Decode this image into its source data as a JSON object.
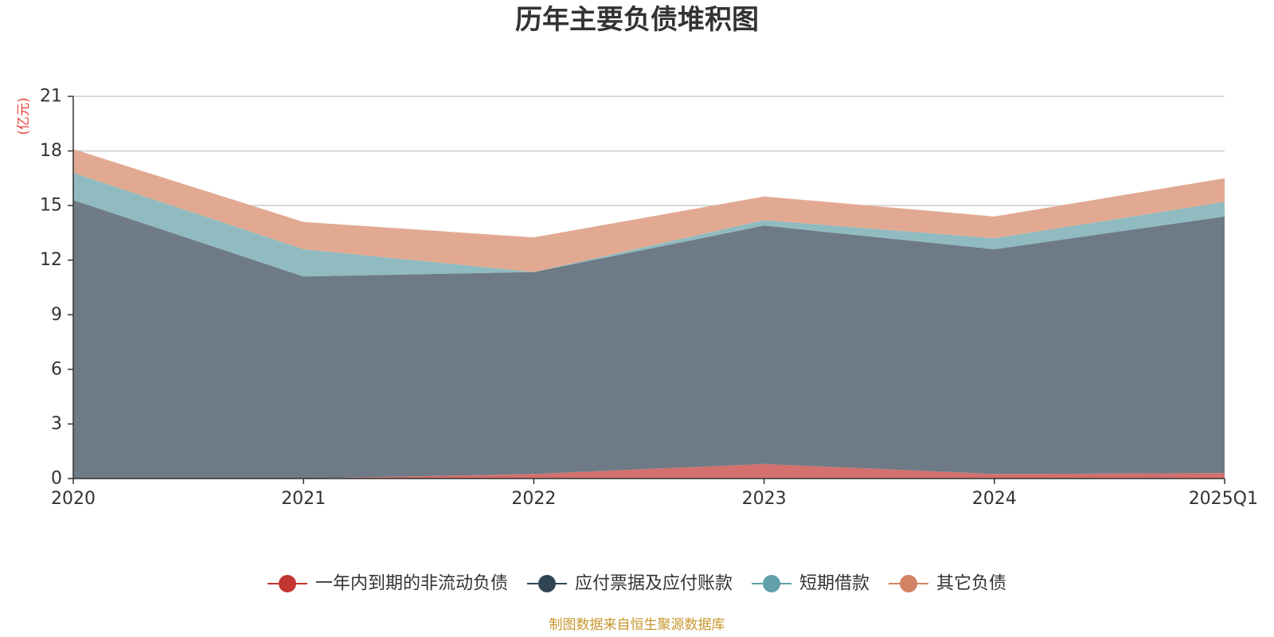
{
  "chart_data": {
    "type": "area",
    "stacked": true,
    "title": "历年主要负债堆积图",
    "unit_label": "(亿元)",
    "categories": [
      "2020",
      "2021",
      "2022",
      "2023",
      "2024",
      "2025Q1"
    ],
    "ylim": [
      0,
      21
    ],
    "yticks": [
      0,
      3,
      6,
      9,
      12,
      15,
      18,
      21
    ],
    "grid": true,
    "legend_position": "bottom-center",
    "series": [
      {
        "name": "一年内到期的非流动负债",
        "values": [
          0.0,
          0.0,
          0.25,
          0.8,
          0.25,
          0.3
        ],
        "line_color": "#c23531",
        "fill_color": "#d4706d"
      },
      {
        "name": "应付票据及应付账款",
        "values": [
          15.3,
          11.1,
          11.1,
          13.1,
          12.35,
          14.1
        ],
        "line_color": "#2f4554",
        "fill_color": "#6e7b86"
      },
      {
        "name": "短期借款",
        "values": [
          1.5,
          1.5,
          0.0,
          0.3,
          0.6,
          0.8
        ],
        "line_color": "#61a0a8",
        "fill_color": "#90bbc0"
      },
      {
        "name": "其它负债",
        "values": [
          1.3,
          1.5,
          1.9,
          1.3,
          1.2,
          1.3
        ],
        "line_color": "#d48265",
        "fill_color": "#e2a992"
      }
    ]
  },
  "source": {
    "text": "制图数据来自恒生聚源数据库",
    "color": "#c8962e"
  },
  "colors": {
    "unit": "#e8413c",
    "axis": "#333333",
    "grid": "#cccccc"
  }
}
